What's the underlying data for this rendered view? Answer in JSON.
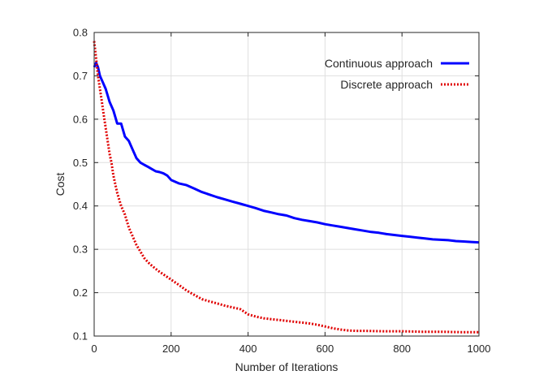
{
  "chart_data": {
    "type": "line",
    "xlabel": "Number of Iterations",
    "ylabel": "Cost",
    "xlim": [
      0,
      1000
    ],
    "ylim": [
      0.1,
      0.8
    ],
    "x_ticks": [
      0,
      200,
      400,
      600,
      800,
      1000
    ],
    "y_ticks": [
      0.1,
      0.2,
      0.3,
      0.4,
      0.5,
      0.6,
      0.7,
      0.8
    ],
    "grid": true,
    "legend_position": "top-right",
    "series": [
      {
        "name": "Continuous approach",
        "color": "#0000ff",
        "style": "solid",
        "x": [
          0,
          5,
          10,
          15,
          20,
          30,
          40,
          50,
          60,
          70,
          80,
          90,
          100,
          110,
          120,
          130,
          140,
          150,
          160,
          170,
          180,
          190,
          200,
          220,
          240,
          260,
          280,
          300,
          320,
          340,
          360,
          380,
          400,
          420,
          440,
          460,
          480,
          500,
          520,
          540,
          560,
          580,
          600,
          620,
          640,
          660,
          680,
          700,
          720,
          740,
          760,
          780,
          800,
          820,
          840,
          860,
          880,
          900,
          920,
          940,
          960,
          980,
          1000
        ],
        "values": [
          0.72,
          0.73,
          0.72,
          0.7,
          0.69,
          0.67,
          0.64,
          0.62,
          0.59,
          0.59,
          0.56,
          0.55,
          0.53,
          0.51,
          0.5,
          0.495,
          0.49,
          0.485,
          0.48,
          0.478,
          0.475,
          0.47,
          0.46,
          0.452,
          0.448,
          0.44,
          0.432,
          0.426,
          0.42,
          0.415,
          0.41,
          0.405,
          0.4,
          0.395,
          0.389,
          0.385,
          0.381,
          0.378,
          0.372,
          0.368,
          0.365,
          0.362,
          0.358,
          0.355,
          0.352,
          0.349,
          0.346,
          0.343,
          0.34,
          0.338,
          0.335,
          0.333,
          0.331,
          0.329,
          0.327,
          0.325,
          0.323,
          0.322,
          0.321,
          0.319,
          0.318,
          0.317,
          0.316
        ]
      },
      {
        "name": "Discrete approach",
        "color": "#e00000",
        "style": "dotted",
        "x": [
          0,
          5,
          10,
          15,
          20,
          25,
          30,
          35,
          40,
          45,
          50,
          60,
          70,
          80,
          90,
          100,
          110,
          120,
          130,
          140,
          150,
          160,
          170,
          180,
          190,
          200,
          220,
          240,
          260,
          280,
          300,
          320,
          340,
          360,
          380,
          400,
          420,
          440,
          460,
          480,
          500,
          520,
          540,
          560,
          580,
          600,
          620,
          640,
          660,
          680,
          700,
          750,
          800,
          850,
          900,
          950,
          1000
        ],
        "values": [
          0.78,
          0.74,
          0.7,
          0.67,
          0.64,
          0.61,
          0.58,
          0.55,
          0.52,
          0.5,
          0.47,
          0.43,
          0.4,
          0.38,
          0.35,
          0.33,
          0.31,
          0.295,
          0.28,
          0.27,
          0.262,
          0.255,
          0.248,
          0.242,
          0.236,
          0.23,
          0.218,
          0.205,
          0.195,
          0.185,
          0.18,
          0.175,
          0.17,
          0.166,
          0.162,
          0.15,
          0.145,
          0.141,
          0.139,
          0.137,
          0.135,
          0.133,
          0.131,
          0.129,
          0.126,
          0.122,
          0.118,
          0.115,
          0.113,
          0.112,
          0.112,
          0.111,
          0.111,
          0.11,
          0.11,
          0.109,
          0.109
        ]
      }
    ]
  }
}
